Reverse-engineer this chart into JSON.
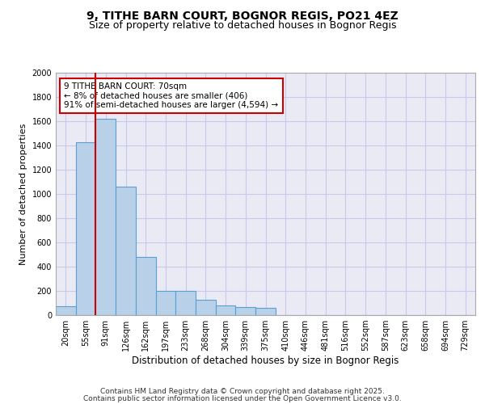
{
  "title": "9, TITHE BARN COURT, BOGNOR REGIS, PO21 4EZ",
  "subtitle": "Size of property relative to detached houses in Bognor Regis",
  "xlabel": "Distribution of detached houses by size in Bognor Regis",
  "ylabel": "Number of detached properties",
  "categories": [
    "20sqm",
    "55sqm",
    "91sqm",
    "126sqm",
    "162sqm",
    "197sqm",
    "233sqm",
    "268sqm",
    "304sqm",
    "339sqm",
    "375sqm",
    "410sqm",
    "446sqm",
    "481sqm",
    "516sqm",
    "552sqm",
    "587sqm",
    "623sqm",
    "658sqm",
    "694sqm",
    "729sqm"
  ],
  "values": [
    75,
    1430,
    1620,
    1060,
    480,
    200,
    200,
    130,
    80,
    70,
    60,
    0,
    0,
    0,
    0,
    0,
    0,
    0,
    0,
    0,
    0
  ],
  "bar_color": "#b8d0e8",
  "bar_edge_color": "#5a9fd4",
  "vline_color": "#cc0000",
  "annotation_line1": "9 TITHE BARN COURT: 70sqm",
  "annotation_line2": "← 8% of detached houses are smaller (406)",
  "annotation_line3": "91% of semi-detached houses are larger (4,594) →",
  "annotation_box_color": "#ffffff",
  "annotation_box_edge": "#cc0000",
  "ylim": [
    0,
    2000
  ],
  "yticks": [
    0,
    200,
    400,
    600,
    800,
    1000,
    1200,
    1400,
    1600,
    1800,
    2000
  ],
  "grid_color": "#c8c8e8",
  "background_color": "#eaeaf5",
  "footer1": "Contains HM Land Registry data © Crown copyright and database right 2025.",
  "footer2": "Contains public sector information licensed under the Open Government Licence v3.0.",
  "title_fontsize": 10,
  "subtitle_fontsize": 9,
  "label_fontsize": 8,
  "tick_fontsize": 7,
  "footer_fontsize": 6.5
}
